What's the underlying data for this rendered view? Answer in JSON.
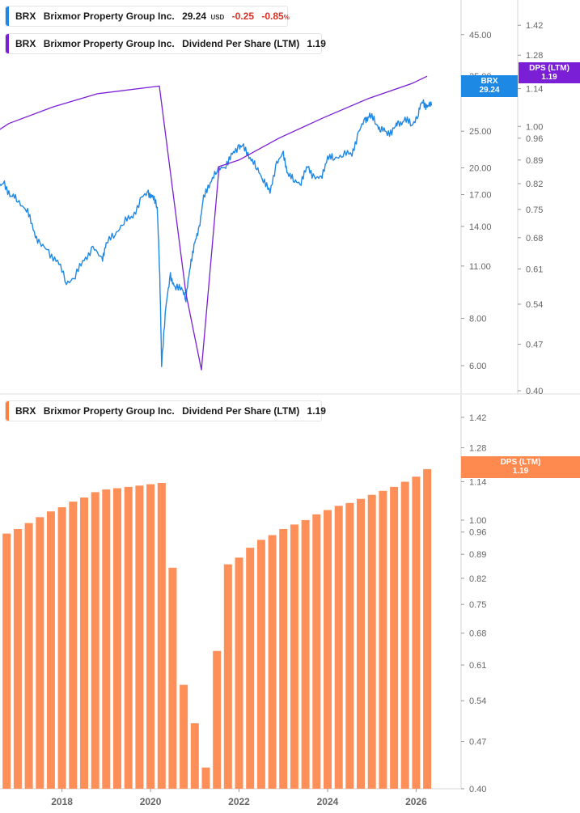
{
  "legends": {
    "top_price": {
      "ticker": "BRX",
      "company": "Brixmor Property Group Inc.",
      "price": "29.24",
      "currency": "USD",
      "change": "-0.25",
      "change_pct": "-0.85",
      "pct_sign": "%",
      "color": "#1e88e5"
    },
    "top_dps": {
      "ticker": "BRX",
      "company": "Brixmor Property Group Inc.",
      "metric": "Dividend Per Share (LTM)",
      "value": "1.19",
      "color": "#7b1fd6"
    },
    "bottom_dps": {
      "ticker": "BRX",
      "company": "Brixmor Property Group Inc.",
      "metric": "Dividend Per Share (LTM)",
      "value": "1.19",
      "color": "#ff7f3f"
    }
  },
  "tags": {
    "price_tag": {
      "label": "BRX",
      "value": "29.24",
      "color": "#1e88e5"
    },
    "dps_tag_top": {
      "label": "DPS (LTM)",
      "value": "1.19",
      "color": "#7b1fd6"
    },
    "dps_tag_bottom": {
      "label": "DPS (LTM)",
      "value": "1.19",
      "color": "#ff8a50"
    }
  },
  "chart_data": [
    {
      "type": "line",
      "scale": "log",
      "x_axis": "shared with lower panel",
      "price_axis": {
        "ticks": [
          "45.00",
          "35.00",
          "25.00",
          "20.00",
          "17.00",
          "14.00",
          "11.00",
          "8.00",
          "6.00"
        ],
        "range": [
          5.1,
          55
        ]
      },
      "dps_axis": {
        "ticks": [
          "1.42",
          "1.28",
          "1.14",
          "1.00",
          "0.96",
          "0.89",
          "0.82",
          "0.75",
          "0.68",
          "0.61",
          "0.54",
          "0.47",
          "0.40"
        ],
        "range": [
          0.4,
          1.55
        ]
      },
      "series": [
        {
          "name": "BRX",
          "axis": "price",
          "color": "#1e88e5",
          "points": [
            [
              2016.4,
              16.5
            ],
            [
              2016.55,
              17.5
            ],
            [
              2016.7,
              18.2
            ],
            [
              2016.85,
              16.8
            ],
            [
              2017.0,
              16.5
            ],
            [
              2017.2,
              15.5
            ],
            [
              2017.35,
              13.8
            ],
            [
              2017.5,
              12.5
            ],
            [
              2017.7,
              12.0
            ],
            [
              2017.9,
              11.3
            ],
            [
              2018.1,
              10.0
            ],
            [
              2018.3,
              10.3
            ],
            [
              2018.5,
              11.5
            ],
            [
              2018.7,
              12.2
            ],
            [
              2018.9,
              11.5
            ],
            [
              2019.0,
              12.5
            ],
            [
              2019.2,
              13.5
            ],
            [
              2019.4,
              14.3
            ],
            [
              2019.6,
              15.0
            ],
            [
              2019.8,
              16.5
            ],
            [
              2019.95,
              17.3
            ],
            [
              2020.05,
              16.6
            ],
            [
              2020.15,
              16.0
            ],
            [
              2020.2,
              11.0
            ],
            [
              2020.25,
              6.1
            ],
            [
              2020.35,
              8.5
            ],
            [
              2020.45,
              10.5
            ],
            [
              2020.55,
              9.5
            ],
            [
              2020.7,
              9.8
            ],
            [
              2020.8,
              8.9
            ],
            [
              2020.9,
              11.2
            ],
            [
              2021.0,
              12.5
            ],
            [
              2021.1,
              14.0
            ],
            [
              2021.2,
              16.5
            ],
            [
              2021.35,
              18.5
            ],
            [
              2021.5,
              19.5
            ],
            [
              2021.7,
              20.5
            ],
            [
              2021.85,
              21.5
            ],
            [
              2022.0,
              23.0
            ],
            [
              2022.1,
              22.5
            ],
            [
              2022.25,
              21.5
            ],
            [
              2022.4,
              19.8
            ],
            [
              2022.55,
              18.8
            ],
            [
              2022.7,
              17.0
            ],
            [
              2022.85,
              20.8
            ],
            [
              2023.0,
              21.5
            ],
            [
              2023.1,
              19.5
            ],
            [
              2023.25,
              18.3
            ],
            [
              2023.4,
              18.5
            ],
            [
              2023.55,
              20.0
            ],
            [
              2023.7,
              19.0
            ],
            [
              2023.85,
              18.5
            ],
            [
              2024.0,
              21.5
            ],
            [
              2024.15,
              21.0
            ],
            [
              2024.35,
              22.0
            ],
            [
              2024.55,
              21.5
            ],
            [
              2024.7,
              25.0
            ],
            [
              2024.85,
              26.5
            ],
            [
              2024.95,
              27.8
            ],
            [
              2025.1,
              26.0
            ],
            [
              2025.2,
              25.5
            ],
            [
              2025.35,
              24.5
            ],
            [
              2025.5,
              25.5
            ],
            [
              2025.6,
              26.0
            ],
            [
              2025.75,
              27.0
            ],
            [
              2025.9,
              25.8
            ],
            [
              2026.05,
              28.0
            ],
            [
              2026.15,
              30.0
            ],
            [
              2026.25,
              29.0
            ],
            [
              2026.35,
              29.24
            ]
          ]
        },
        {
          "name": "Dividend Per Share (LTM)",
          "axis": "dps",
          "color": "#7b1fd6",
          "points": [
            [
              2016.4,
              0.97
            ],
            [
              2016.8,
              1.01
            ],
            [
              2017.8,
              1.07
            ],
            [
              2018.8,
              1.12
            ],
            [
              2020.2,
              1.15
            ],
            [
              2020.8,
              0.56
            ],
            [
              2021.15,
              0.43
            ],
            [
              2021.55,
              0.87
            ],
            [
              2022.0,
              0.89
            ],
            [
              2022.9,
              0.96
            ],
            [
              2023.9,
              1.03
            ],
            [
              2024.9,
              1.1
            ],
            [
              2025.9,
              1.16
            ],
            [
              2026.25,
              1.19
            ]
          ]
        }
      ]
    },
    {
      "type": "bar",
      "scale": "log",
      "y_axis": {
        "ticks": [
          "1.42",
          "1.28",
          "1.14",
          "1.00",
          "0.96",
          "0.89",
          "0.82",
          "0.75",
          "0.68",
          "0.61",
          "0.54",
          "0.47",
          "0.40"
        ],
        "range": [
          0.4,
          1.5
        ]
      },
      "x_axis": {
        "tick_labels": [
          "2018",
          "2020",
          "2022",
          "2024",
          "2026"
        ],
        "range": [
          2016.6,
          2026.65
        ]
      },
      "series": [
        {
          "name": "Dividend Per Share (LTM)",
          "color": "#ff8f58",
          "x": [
            2016.75,
            2017.0,
            2017.25,
            2017.5,
            2017.75,
            2018.0,
            2018.25,
            2018.5,
            2018.75,
            2019.0,
            2019.25,
            2019.5,
            2019.75,
            2020.0,
            2020.25,
            2020.5,
            2020.75,
            2021.0,
            2021.25,
            2021.5,
            2021.75,
            2022.0,
            2022.25,
            2022.5,
            2022.75,
            2023.0,
            2023.25,
            2023.5,
            2023.75,
            2024.0,
            2024.25,
            2024.5,
            2024.75,
            2025.0,
            2025.25,
            2025.5,
            2025.75,
            2026.0,
            2026.25
          ],
          "values": [
            0.955,
            0.97,
            0.99,
            1.01,
            1.03,
            1.045,
            1.065,
            1.08,
            1.1,
            1.11,
            1.115,
            1.12,
            1.125,
            1.13,
            1.135,
            0.85,
            0.57,
            0.5,
            0.43,
            0.64,
            0.86,
            0.88,
            0.91,
            0.935,
            0.95,
            0.97,
            0.985,
            1.0,
            1.02,
            1.035,
            1.05,
            1.06,
            1.075,
            1.09,
            1.105,
            1.12,
            1.14,
            1.16,
            1.19
          ]
        }
      ]
    }
  ]
}
